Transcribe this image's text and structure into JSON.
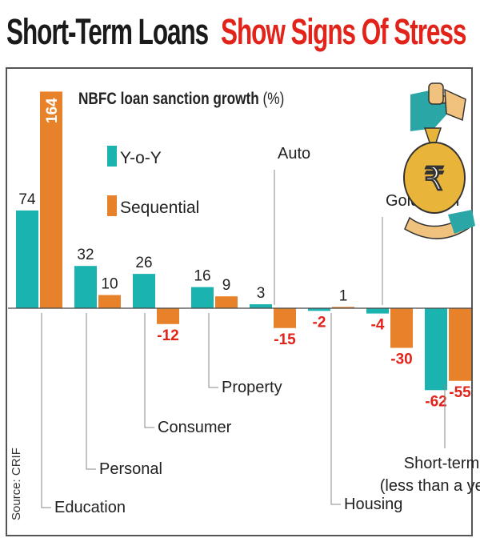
{
  "headline": {
    "part1": "Short-Term Loans",
    "part2": "Show Signs Of Stress"
  },
  "source": "Source: CRIF",
  "colors": {
    "yoy": "#1bb3b0",
    "sequential": "#e8822a",
    "negative_label": "#e2231a",
    "headline_accent": "#e2231a"
  },
  "chart_data": {
    "type": "bar",
    "title": "NBFC loan sanction growth",
    "title_unit": "(%)",
    "categories": [
      "Education",
      "Personal",
      "Consumer",
      "Property",
      "Auto",
      "Housing",
      "Gold Loan",
      "Short-term (less than a year)"
    ],
    "category_labels": [
      [
        "Education"
      ],
      [
        "Personal"
      ],
      [
        "Consumer"
      ],
      [
        "Property"
      ],
      [
        "Auto"
      ],
      [
        "Housing"
      ],
      [
        "Gold Loan"
      ],
      [
        "Short-term",
        "(less than a year)"
      ]
    ],
    "series": [
      {
        "name": "Y-o-Y",
        "values": [
          74,
          32,
          26,
          16,
          3,
          -2,
          -4,
          -62
        ]
      },
      {
        "name": "Sequential",
        "values": [
          164,
          10,
          -12,
          9,
          -15,
          1,
          -30,
          -55
        ]
      }
    ],
    "legend": [
      "Y-o-Y",
      "Sequential"
    ],
    "legend_position": "top-left",
    "grid": false,
    "xlabel": "",
    "ylabel": "",
    "ylim": [
      -70,
      170
    ]
  }
}
